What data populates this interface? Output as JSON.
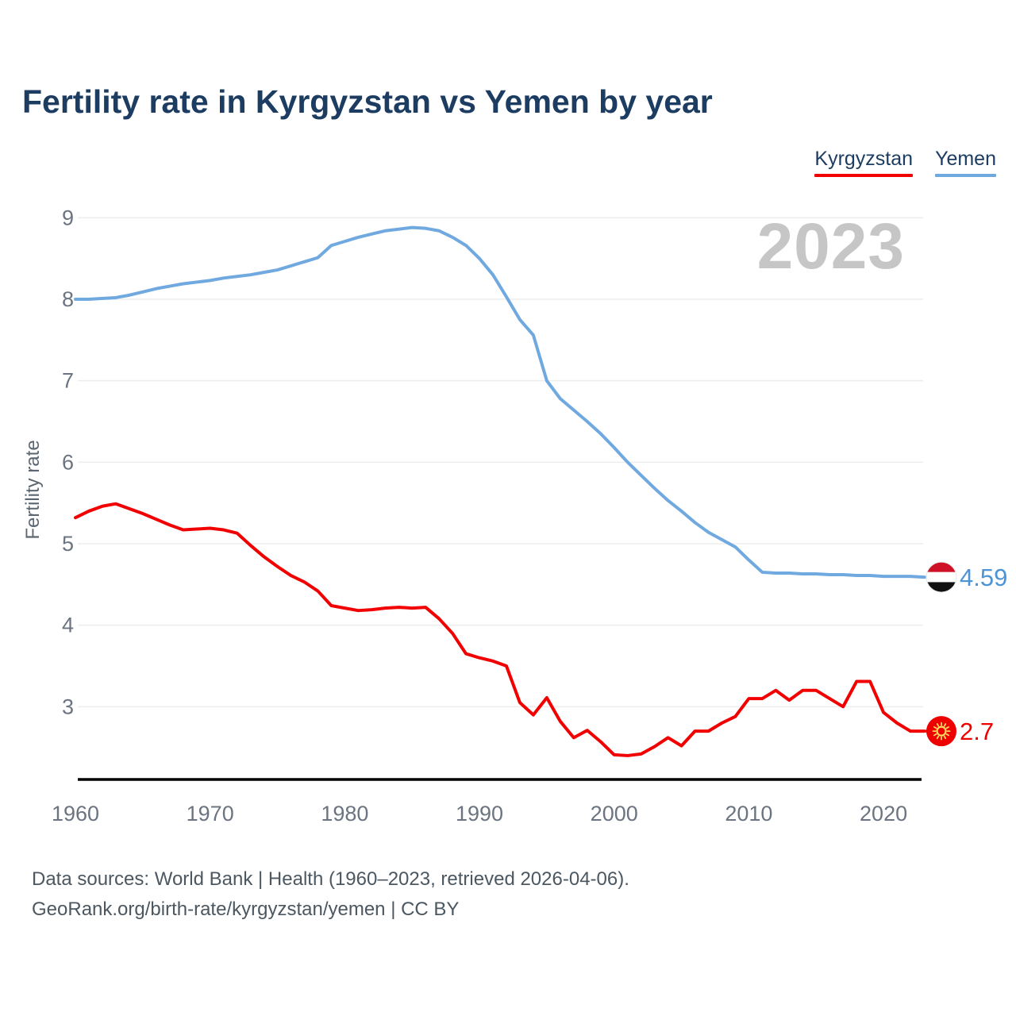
{
  "title": "Fertility rate in Kyrgyzstan vs Yemen by year",
  "watermark": "2023",
  "legend": [
    {
      "label": "Kyrgyzstan",
      "color": "#f20000"
    },
    {
      "label": "Yemen",
      "color": "#70a9e0"
    }
  ],
  "footer": {
    "line1": "Data sources: World Bank | Health (1960–2023, retrieved 2026-04-06).",
    "line2": "GeoRank.org/birth-rate/kyrgyzstan/yemen | CC BY"
  },
  "chart_data": {
    "type": "line",
    "title": "Fertility rate in Kyrgyzstan vs Yemen by year",
    "xlabel": "",
    "ylabel": "Fertility rate",
    "x_ticks": [
      1960,
      1970,
      1980,
      1990,
      2000,
      2010,
      2020
    ],
    "y_ticks": [
      3,
      4,
      5,
      6,
      7,
      8,
      9
    ],
    "xlim": [
      1960,
      2023
    ],
    "ylim": [
      2.1,
      9.3
    ],
    "grid": true,
    "legend_position": "top-right",
    "x": [
      1960,
      1961,
      1962,
      1963,
      1964,
      1965,
      1966,
      1967,
      1968,
      1969,
      1970,
      1971,
      1972,
      1973,
      1974,
      1975,
      1976,
      1977,
      1978,
      1979,
      1980,
      1981,
      1982,
      1983,
      1984,
      1985,
      1986,
      1987,
      1988,
      1989,
      1990,
      1991,
      1992,
      1993,
      1994,
      1995,
      1996,
      1997,
      1998,
      1999,
      2000,
      2001,
      2002,
      2003,
      2004,
      2005,
      2006,
      2007,
      2008,
      2009,
      2010,
      2011,
      2012,
      2013,
      2014,
      2015,
      2016,
      2017,
      2018,
      2019,
      2020,
      2021,
      2022,
      2023
    ],
    "series": [
      {
        "name": "Kyrgyzstan",
        "color": "#f20000",
        "flag": "kyrgyzstan",
        "end_label": "2.7",
        "end_label_color": "#f20000",
        "values": [
          5.32,
          5.4,
          5.46,
          5.49,
          5.43,
          5.37,
          5.3,
          5.23,
          5.17,
          5.18,
          5.19,
          5.17,
          5.13,
          4.98,
          4.84,
          4.72,
          4.61,
          4.53,
          4.42,
          4.24,
          4.21,
          4.18,
          4.19,
          4.21,
          4.22,
          4.21,
          4.22,
          4.08,
          3.9,
          3.65,
          3.6,
          3.56,
          3.5,
          3.05,
          2.9,
          3.11,
          2.82,
          2.62,
          2.71,
          2.57,
          2.41,
          2.4,
          2.42,
          2.51,
          2.62,
          2.52,
          2.7,
          2.7,
          2.8,
          2.88,
          3.1,
          3.1,
          3.2,
          3.08,
          3.2,
          3.2,
          3.1,
          3.0,
          3.31,
          3.31,
          2.93,
          2.8,
          2.7,
          2.7
        ]
      },
      {
        "name": "Yemen",
        "color": "#70a9e0",
        "flag": "yemen",
        "end_label": "4.59",
        "end_label_color": "#4d94d6",
        "values": [
          8.0,
          8.0,
          8.01,
          8.02,
          8.05,
          8.09,
          8.13,
          8.16,
          8.19,
          8.21,
          8.23,
          8.26,
          8.28,
          8.3,
          8.33,
          8.36,
          8.41,
          8.46,
          8.51,
          8.66,
          8.71,
          8.76,
          8.8,
          8.84,
          8.86,
          8.88,
          8.87,
          8.84,
          8.76,
          8.66,
          8.5,
          8.3,
          8.03,
          7.75,
          7.56,
          7.0,
          6.78,
          6.64,
          6.5,
          6.35,
          6.18,
          6.0,
          5.84,
          5.68,
          5.53,
          5.4,
          5.26,
          5.14,
          5.05,
          4.96,
          4.8,
          4.65,
          4.64,
          4.64,
          4.63,
          4.63,
          4.62,
          4.62,
          4.61,
          4.61,
          4.6,
          4.6,
          4.6,
          4.59
        ]
      }
    ]
  }
}
